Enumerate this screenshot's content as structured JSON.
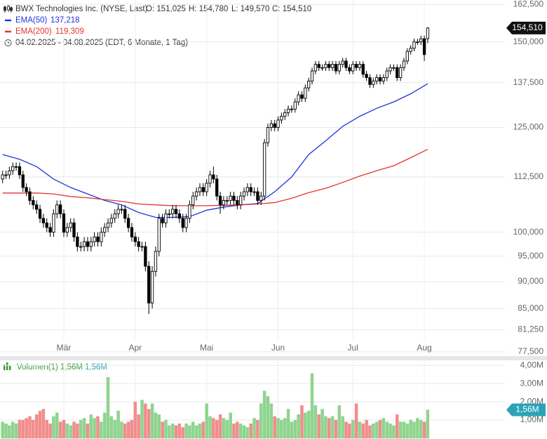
{
  "chart_data": [
    {
      "type": "candlestick",
      "title": "BWX Technologies Inc. (NYSE, Last)",
      "header": [
        "O: 151,025",
        "H: 154,780",
        "L: 149,570",
        "C: 154,510"
      ],
      "date_range": "04.02.2025 - 04.08.2025",
      "range_note": "(EDT, 6 Monate, 1 Tag)",
      "open": [
        112,
        113,
        113,
        114,
        115,
        115,
        113,
        110,
        109,
        107,
        106,
        105,
        103,
        102,
        101,
        100,
        104,
        106,
        104,
        100,
        101,
        102,
        99,
        97,
        97,
        98,
        97,
        98,
        99,
        98,
        100,
        101,
        102,
        103,
        104,
        105,
        105,
        103,
        101,
        99,
        98,
        97,
        97,
        93,
        86,
        92,
        96,
        103,
        102,
        104,
        104,
        105,
        104,
        103,
        101,
        103,
        106,
        108,
        109,
        110,
        109,
        111,
        113,
        112,
        108,
        106,
        107,
        107,
        108,
        107,
        106,
        108,
        109,
        110,
        109,
        109,
        107,
        108,
        121,
        125,
        126,
        125,
        127,
        128,
        129,
        130,
        130,
        132,
        134,
        133,
        136,
        138,
        141,
        143,
        142,
        142,
        143,
        142,
        143,
        141,
        143,
        144,
        142,
        141,
        143,
        142,
        143,
        140,
        139,
        137,
        138,
        139,
        138,
        139,
        141,
        142,
        142,
        139,
        142,
        144,
        147,
        148,
        150,
        150,
        151,
        151.025
      ],
      "high": [
        114,
        114,
        115,
        116,
        116,
        116,
        114,
        111,
        110,
        108,
        107,
        106,
        104,
        103,
        102,
        105,
        107,
        107,
        105,
        102,
        103,
        103,
        100,
        98,
        99,
        99,
        99,
        100,
        100,
        101,
        102,
        103,
        104,
        105,
        106,
        106,
        106,
        104,
        102,
        100,
        99,
        98,
        98,
        94,
        93,
        97,
        104,
        104,
        105,
        105,
        106,
        106,
        105,
        104,
        104,
        107,
        109,
        110,
        111,
        111,
        112,
        114,
        115,
        113,
        109,
        108,
        108,
        109,
        109,
        108,
        109,
        110,
        111,
        111,
        110,
        110,
        109,
        122,
        126,
        127,
        127,
        128,
        129,
        130,
        131,
        131,
        133,
        135,
        135,
        137,
        139,
        142,
        144,
        144,
        143,
        144,
        144,
        144,
        144,
        144,
        145,
        145,
        143,
        144,
        144,
        144,
        144,
        141,
        140,
        139,
        140,
        140,
        140,
        142,
        143,
        143,
        143,
        143,
        145,
        148,
        149,
        151,
        151,
        152,
        152,
        154.78
      ],
      "low": [
        111,
        112,
        112,
        113,
        114,
        112,
        109,
        108,
        106,
        105,
        104,
        102,
        101,
        100,
        99,
        99,
        103,
        103,
        99,
        99,
        100,
        98,
        96,
        96,
        96,
        96,
        96,
        97,
        97,
        97,
        99,
        100,
        101,
        102,
        103,
        104,
        102,
        100,
        98,
        97,
        96,
        96,
        92,
        84,
        85,
        91,
        95,
        101,
        101,
        103,
        103,
        103,
        102,
        100,
        100,
        102,
        105,
        107,
        108,
        108,
        108,
        110,
        111,
        107,
        104,
        105,
        106,
        106,
        106,
        105,
        105,
        107,
        108,
        108,
        108,
        106,
        106,
        107,
        120,
        124,
        124,
        124,
        126,
        127,
        128,
        129,
        129,
        131,
        132,
        132,
        135,
        137,
        140,
        141,
        141,
        141,
        141,
        141,
        140,
        140,
        142,
        141,
        140,
        140,
        141,
        141,
        139,
        138,
        136,
        136,
        137,
        137,
        137,
        138,
        140,
        141,
        138,
        138,
        141,
        143,
        146,
        147,
        149,
        149,
        144,
        149.57
      ],
      "close": [
        113,
        113,
        114,
        115,
        115,
        113,
        110,
        109,
        107,
        106,
        105,
        103,
        102,
        101,
        100,
        104,
        106,
        104,
        100,
        101,
        102,
        99,
        97,
        97,
        98,
        97,
        98,
        99,
        98,
        100,
        101,
        102,
        103,
        104,
        105,
        105,
        103,
        101,
        99,
        98,
        97,
        97,
        93,
        86,
        92,
        96,
        103,
        102,
        104,
        104,
        105,
        104,
        103,
        101,
        103,
        106,
        108,
        109,
        110,
        109,
        111,
        113,
        112,
        108,
        106,
        107,
        107,
        108,
        107,
        106,
        108,
        109,
        110,
        109,
        109,
        107,
        108,
        121,
        125,
        126,
        125,
        127,
        128,
        129,
        130,
        130,
        132,
        134,
        133,
        136,
        138,
        141,
        143,
        142,
        142,
        143,
        142,
        143,
        141,
        143,
        144,
        142,
        141,
        143,
        142,
        143,
        140,
        139,
        137,
        138,
        139,
        138,
        139,
        141,
        142,
        142,
        139,
        142,
        144,
        147,
        148,
        150,
        150,
        151,
        146,
        154.51
      ],
      "candle_color": "#000000",
      "xlim": [
        -0.76,
        147.7
      ],
      "xticks": [
        {
          "value": 18,
          "label": "Mär"
        },
        {
          "value": 39,
          "label": "Apr"
        },
        {
          "value": 60,
          "label": "Mai"
        },
        {
          "value": 81,
          "label": "Jun"
        },
        {
          "value": 103,
          "label": "Jul"
        },
        {
          "value": 124,
          "label": "Aug"
        }
      ],
      "ylim": [
        76.8,
        164
      ],
      "log_scale": true,
      "yticks": [
        {
          "value": 77.5,
          "label": "77,500"
        },
        {
          "value": 81.25,
          "label": "81,250"
        },
        {
          "value": 85,
          "label": "85,000"
        },
        {
          "value": 90,
          "label": "90,000"
        },
        {
          "value": 95,
          "label": "95,000"
        },
        {
          "value": 100,
          "label": "100,000"
        },
        {
          "value": 112.5,
          "label": "112,500"
        },
        {
          "value": 125,
          "label": "125,000"
        },
        {
          "value": 137.5,
          "label": "137,500"
        },
        {
          "value": 150,
          "label": "150,000"
        },
        {
          "value": 162.5,
          "label": "162,500"
        }
      ],
      "grid": true,
      "series": [
        {
          "name": "EMA(50)",
          "value_label": "137,218",
          "color": "#1f35d8",
          "x": [
            0,
            5,
            10,
            15,
            20,
            25,
            30,
            35,
            40,
            45,
            50,
            55,
            60,
            65,
            70,
            75,
            80,
            85,
            90,
            95,
            100,
            105,
            110,
            115,
            120,
            125
          ],
          "values": [
            118,
            116.8,
            115,
            112,
            110,
            108.5,
            107,
            106,
            104.3,
            103.2,
            103.2,
            103.4,
            104.8,
            105.5,
            106,
            106.3,
            109,
            112.5,
            118,
            121.5,
            125.3,
            128,
            130.2,
            132,
            134.3,
            137.218
          ]
        },
        {
          "name": "EMA(200)",
          "value_label": "119,309",
          "color": "#e3342f",
          "x": [
            0,
            5,
            10,
            15,
            20,
            25,
            30,
            35,
            40,
            45,
            50,
            55,
            60,
            65,
            70,
            75,
            80,
            85,
            90,
            95,
            100,
            105,
            110,
            115,
            120,
            125
          ],
          "values": [
            108.7,
            108.7,
            108.7,
            108.5,
            107.9,
            107.6,
            107.2,
            106.8,
            106.2,
            106,
            105.8,
            105.8,
            105.8,
            105.9,
            106,
            106.2,
            106.5,
            107.5,
            108.8,
            109.8,
            111.2,
            112.7,
            114,
            115.2,
            117.2,
            119.309
          ]
        }
      ],
      "last_label": "154,510",
      "last_label_color": "#111111"
    },
    {
      "type": "bar",
      "title": "Volumen(1)",
      "header": [
        "1,56M",
        "1,56M"
      ],
      "values": [
        0.9,
        0.8,
        0.7,
        0.9,
        0.8,
        1.0,
        1.0,
        1.1,
        1.2,
        1.0,
        1.3,
        1.5,
        1.6,
        1.0,
        0.8,
        1.2,
        1.4,
        0.9,
        1.0,
        0.8,
        0.7,
        0.9,
        0.8,
        1.0,
        1.1,
        0.8,
        1.3,
        1.1,
        1.2,
        0.9,
        1.4,
        3.35,
        1.2,
        1.0,
        1.5,
        0.9,
        0.8,
        0.9,
        1.0,
        2.0,
        1.3,
        2.1,
        1.9,
        1.6,
        1.9,
        1.4,
        1.3,
        0.9,
        1.0,
        0.7,
        0.8,
        0.7,
        0.8,
        0.6,
        0.8,
        0.7,
        0.9,
        0.7,
        0.8,
        0.9,
        1.9,
        1.2,
        1.1,
        1.0,
        1.3,
        1.1,
        1.0,
        1.4,
        0.8,
        0.9,
        0.8,
        0.7,
        0.6,
        0.8,
        1.1,
        1.0,
        1.9,
        2.6,
        2.3,
        1.9,
        1.2,
        1.1,
        1.0,
        1.1,
        1.6,
        0.9,
        1.0,
        1.3,
        1.8,
        1.4,
        1.5,
        3.55,
        1.8,
        1.3,
        1.6,
        1.2,
        1.1,
        1.2,
        1.0,
        1.8,
        1.2,
        0.9,
        0.8,
        1.0,
        1.9,
        0.9,
        0.8,
        1.0,
        0.7,
        0.8,
        0.9,
        1.0,
        1.1,
        0.9,
        0.8,
        0.7,
        1.3,
        0.9,
        0.9,
        0.8,
        1.0,
        0.9,
        1.1,
        1.0,
        0.9,
        1.56
      ],
      "up_color": "#8fd48f",
      "down_color": "#f08d8d",
      "ylim": [
        0,
        4.2
      ],
      "yticks": [
        {
          "value": 1,
          "label": "1,00M"
        },
        {
          "value": 2,
          "label": "2,00M"
        },
        {
          "value": 3,
          "label": "3,00M"
        },
        {
          "value": 4,
          "label": "4,00M"
        }
      ],
      "grid": true,
      "last_label": "1,56M",
      "last_label_color": "#2aa3b8"
    }
  ]
}
